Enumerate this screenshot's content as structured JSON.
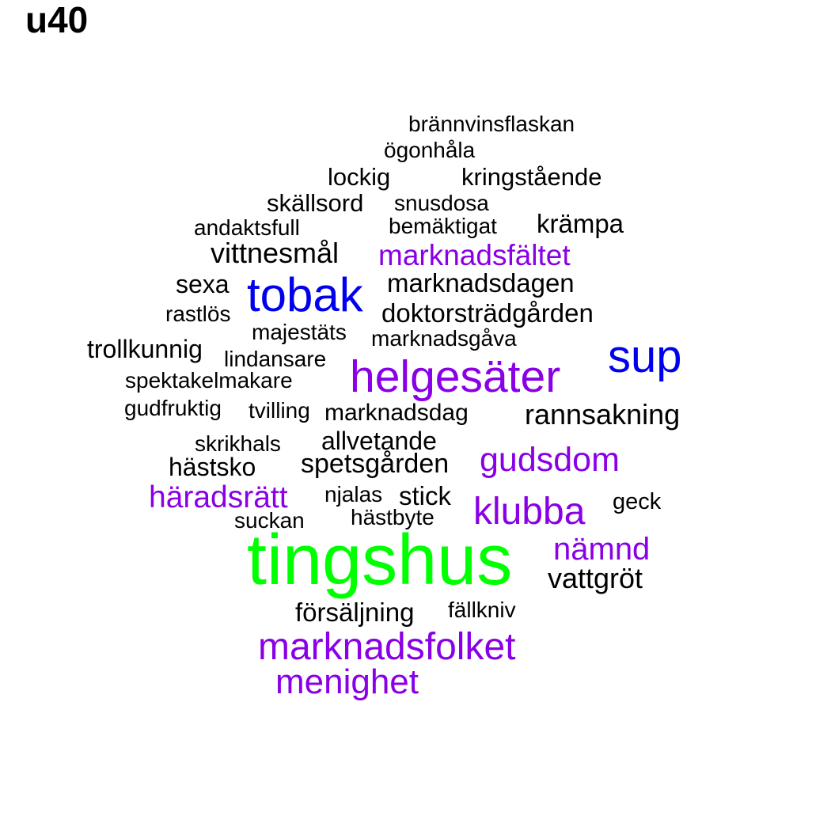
{
  "title": "u40",
  "colors": {
    "black": "#000000",
    "purple": "#8a00e6",
    "blue": "#0000ee",
    "green": "#00ff00"
  },
  "words": [
    {
      "text": "brännvinsflaskan",
      "color": "black"
    },
    {
      "text": "ögonhåla",
      "color": "black"
    },
    {
      "text": "lockig",
      "color": "black"
    },
    {
      "text": "kringstående",
      "color": "black"
    },
    {
      "text": "skällsord",
      "color": "black"
    },
    {
      "text": "snusdosa",
      "color": "black"
    },
    {
      "text": "andaktsfull",
      "color": "black"
    },
    {
      "text": "bemäktigat",
      "color": "black"
    },
    {
      "text": "krämpa",
      "color": "black"
    },
    {
      "text": "vittnesmål",
      "color": "black"
    },
    {
      "text": "marknadsfältet",
      "color": "purple"
    },
    {
      "text": "sexa",
      "color": "black"
    },
    {
      "text": "tobak",
      "color": "blue"
    },
    {
      "text": "marknadsdagen",
      "color": "black"
    },
    {
      "text": "rastlös",
      "color": "black"
    },
    {
      "text": "doktorsträdgården",
      "color": "black"
    },
    {
      "text": "majestäts",
      "color": "black"
    },
    {
      "text": "marknadsgåva",
      "color": "black"
    },
    {
      "text": "trollkunnig",
      "color": "black"
    },
    {
      "text": "lindansare",
      "color": "black"
    },
    {
      "text": "sup",
      "color": "blue"
    },
    {
      "text": "helgesäter",
      "color": "purple"
    },
    {
      "text": "spektakelmakare",
      "color": "black"
    },
    {
      "text": "gudfruktig",
      "color": "black"
    },
    {
      "text": "tvilling",
      "color": "black"
    },
    {
      "text": "marknadsdag",
      "color": "black"
    },
    {
      "text": "rannsakning",
      "color": "black"
    },
    {
      "text": "allvetande",
      "color": "black"
    },
    {
      "text": "skrikhals",
      "color": "black"
    },
    {
      "text": "gudsdom",
      "color": "purple"
    },
    {
      "text": "hästsko",
      "color": "black"
    },
    {
      "text": "spetsgården",
      "color": "black"
    },
    {
      "text": "häradsrätt",
      "color": "purple"
    },
    {
      "text": "njalas",
      "color": "black"
    },
    {
      "text": "stick",
      "color": "black"
    },
    {
      "text": "klubba",
      "color": "purple"
    },
    {
      "text": "geck",
      "color": "black"
    },
    {
      "text": "suckan",
      "color": "black"
    },
    {
      "text": "hästbyte",
      "color": "black"
    },
    {
      "text": "tingshus",
      "color": "green"
    },
    {
      "text": "nämnd",
      "color": "purple"
    },
    {
      "text": "vattgröt",
      "color": "black"
    },
    {
      "text": "försäljning",
      "color": "black"
    },
    {
      "text": "fällkniv",
      "color": "black"
    },
    {
      "text": "marknadsfolket",
      "color": "purple"
    },
    {
      "text": "menighet",
      "color": "purple"
    }
  ]
}
